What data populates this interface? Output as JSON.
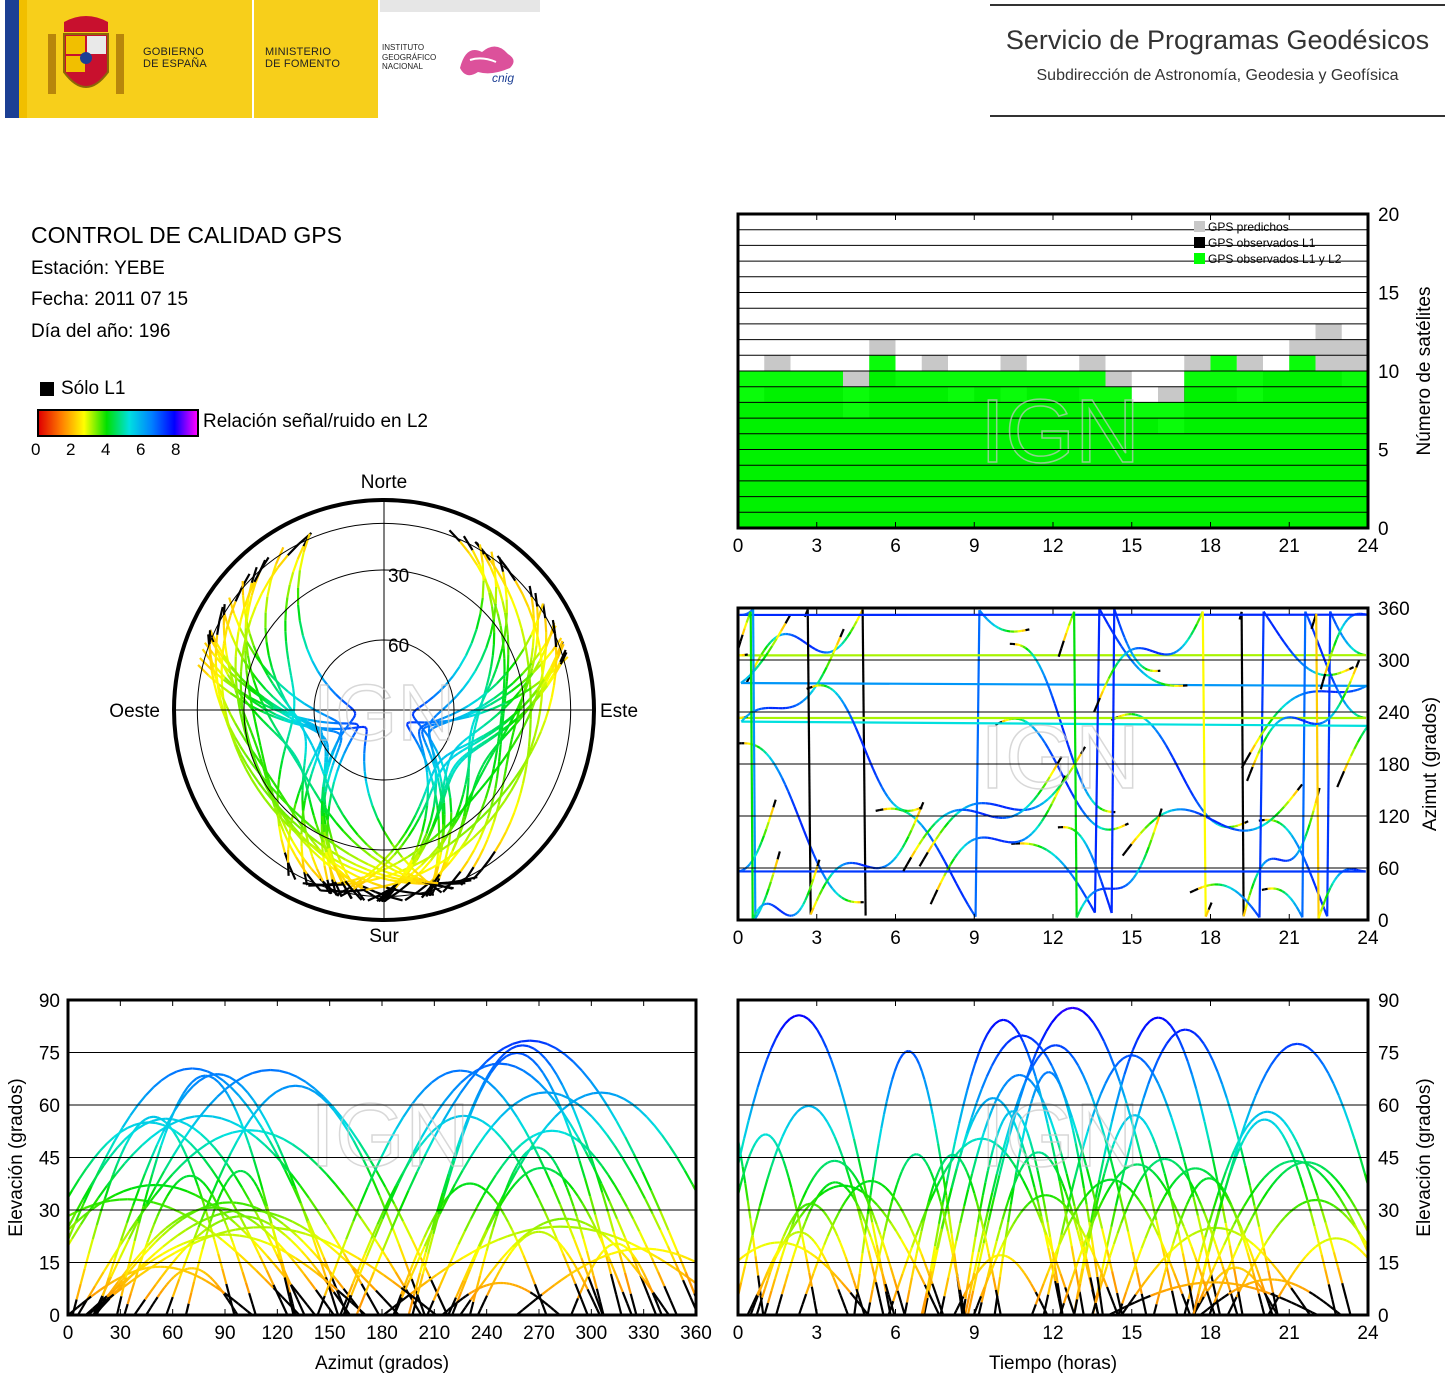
{
  "header": {
    "gov_line1": "GOBIERNO",
    "gov_line2": "DE ESPAÑA",
    "ministry_line1": "MINISTERIO",
    "ministry_line2": "DE FOMENTO",
    "ign_line1": "INSTITUTO",
    "ign_line2": "GEOGRÁFICO",
    "ign_line3": "NACIONAL",
    "cnig_label": "cnig",
    "service_title": "Servicio de Programas Geodésicos",
    "service_subtitle": "Subdirección de Astronomía, Geodesia y Geofísica"
  },
  "info": {
    "title": "CONTROL DE CALIDAD GPS",
    "station": "Estación: YEBE",
    "date": "Fecha: 2011 07 15",
    "doy": "Día del año: 196",
    "l1_only": "Sólo L1",
    "snr_label": "Relación señal/ruido en L2",
    "snr_ticks": [
      "0",
      "2",
      "4",
      "6",
      "8"
    ]
  },
  "watermark": "IGN",
  "colors": {
    "snr_scale": [
      "#e00000",
      "#ff7f00",
      "#ffff00",
      "#00e000",
      "#00e0e0",
      "#0080ff",
      "#0000ff",
      "#ff00ff"
    ],
    "predicted": "#c8c8c8",
    "observed_l1": "#000000",
    "observed_l1l2": "#00ff00",
    "banner_yellow": "#f7cf1b"
  },
  "chart_data": [
    {
      "type": "area",
      "id": "satellite-count",
      "ylabel": "Número de satélites",
      "xlim": [
        0,
        24
      ],
      "ylim": [
        0,
        20
      ],
      "xticks": [
        "0",
        "3",
        "6",
        "9",
        "12",
        "15",
        "18",
        "21",
        "24"
      ],
      "yticks": [
        "0",
        "5",
        "10",
        "15",
        "20"
      ],
      "legend": [
        "GPS predichos",
        "GPS observados L1",
        "GPS observados L1 y L2"
      ],
      "legend_position": "top-right",
      "grid": true,
      "x": [
        0,
        1,
        2,
        3,
        4,
        5,
        6,
        7,
        8,
        9,
        10,
        11,
        12,
        13,
        14,
        15,
        16,
        17,
        18,
        19,
        20,
        21,
        22,
        23,
        24
      ],
      "series": [
        {
          "name": "GPS predichos",
          "values": [
            10,
            11,
            10,
            10,
            10,
            12,
            10,
            11,
            10,
            10,
            11,
            10,
            10,
            11,
            10,
            8,
            9,
            11,
            10,
            11,
            10,
            12,
            13,
            12,
            10
          ]
        },
        {
          "name": "GPS observados L1",
          "values": [
            10,
            10,
            10,
            10,
            9,
            11,
            10,
            10,
            10,
            10,
            10,
            10,
            10,
            10,
            9,
            8,
            8,
            10,
            11,
            10,
            10,
            11,
            10,
            10,
            10
          ]
        },
        {
          "name": "GPS observados L1 y L2",
          "values": [
            8,
            9,
            9,
            9,
            7,
            10,
            9,
            9,
            8,
            9,
            8,
            9,
            9,
            8,
            8,
            7,
            6,
            9,
            9,
            8,
            10,
            10,
            10,
            9,
            9
          ]
        }
      ]
    },
    {
      "type": "scatter",
      "id": "azimuth-time",
      "ylabel": "Azimut (grados)",
      "xlim": [
        0,
        24
      ],
      "ylim": [
        0,
        360
      ],
      "xticks": [
        "0",
        "3",
        "6",
        "9",
        "12",
        "15",
        "18",
        "21",
        "24"
      ],
      "yticks": [
        "0",
        "60",
        "120",
        "180",
        "240",
        "300",
        "360"
      ],
      "grid": true
    },
    {
      "type": "scatter",
      "id": "skyplot",
      "labels": {
        "north": "Norte",
        "south": "Sur",
        "east": "Este",
        "west": "Oeste"
      },
      "rings": [
        "30",
        "60"
      ],
      "elevation_mask_deg": 10
    },
    {
      "type": "scatter",
      "id": "elevation-azimuth",
      "xlabel": "Azimut (grados)",
      "ylabel": "Elevación (grados)",
      "xlim": [
        0,
        360
      ],
      "ylim": [
        0,
        90
      ],
      "xticks": [
        "0",
        "30",
        "60",
        "90",
        "120",
        "150",
        "180",
        "210",
        "240",
        "270",
        "300",
        "330",
        "360"
      ],
      "yticks": [
        "0",
        "15",
        "30",
        "45",
        "60",
        "75",
        "90"
      ],
      "grid": true
    },
    {
      "type": "scatter",
      "id": "elevation-time",
      "xlabel": "Tiempo (horas)",
      "ylabel": "Elevación (grados)",
      "xlim": [
        0,
        24
      ],
      "ylim": [
        0,
        90
      ],
      "xticks": [
        "0",
        "3",
        "6",
        "9",
        "12",
        "15",
        "18",
        "21",
        "24"
      ],
      "yticks": [
        "0",
        "15",
        "30",
        "45",
        "60",
        "75",
        "90"
      ],
      "grid": true
    }
  ]
}
